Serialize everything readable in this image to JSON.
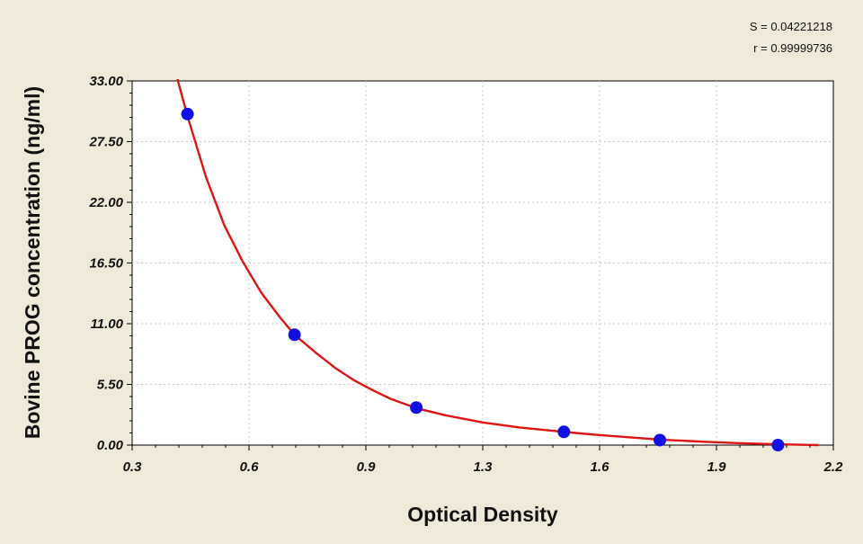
{
  "stats": {
    "s_label": "S = 0.04221218",
    "r_label": "r = 0.99999736"
  },
  "colors": {
    "background": "#efe9da",
    "plot_area": "#ffffff",
    "grid": "#c8c8c8",
    "curve": "#e01414",
    "points": "#1010e0"
  },
  "chart_data": {
    "type": "scatter",
    "xlabel": "Optical Density",
    "ylabel": "Bovine PROG concentration (ng/ml)",
    "xlim": [
      0.3,
      2.2
    ],
    "ylim": [
      0,
      33
    ],
    "x_ticks": [
      0.3,
      0.6,
      0.9,
      1.3,
      1.6,
      1.9,
      2.2
    ],
    "x_tick_labels": [
      "0.3",
      "0.6",
      "0.9",
      "1.3",
      "1.6",
      "1.9",
      "2.2"
    ],
    "y_ticks": [
      0,
      5.5,
      11,
      16.5,
      22,
      27.5,
      33
    ],
    "y_tick_labels": [
      "0.00",
      "5.50",
      "11.00",
      "16.50",
      "22.00",
      "27.50",
      "33.00"
    ],
    "grid": true,
    "series": [
      {
        "kind": "points",
        "x": [
          0.45,
          0.74,
          1.07,
          1.47,
          1.73,
          2.05
        ],
        "y": [
          30.0,
          10.0,
          3.4,
          1.2,
          0.45,
          0.0
        ]
      },
      {
        "kind": "fitted-curve",
        "x": [
          0.42,
          0.45,
          0.5,
          0.55,
          0.6,
          0.65,
          0.7,
          0.74,
          0.8,
          0.85,
          0.9,
          0.95,
          1.0,
          1.07,
          1.15,
          1.25,
          1.35,
          1.47,
          1.55,
          1.65,
          1.73,
          1.85,
          1.95,
          2.05,
          2.16
        ],
        "y": [
          33.5,
          29.8,
          24.3,
          19.9,
          16.6,
          13.8,
          11.6,
          10.0,
          8.3,
          7.0,
          5.9,
          5.0,
          4.2,
          3.35,
          2.7,
          2.05,
          1.6,
          1.2,
          0.95,
          0.7,
          0.5,
          0.3,
          0.17,
          0.07,
          0.0
        ]
      }
    ]
  }
}
